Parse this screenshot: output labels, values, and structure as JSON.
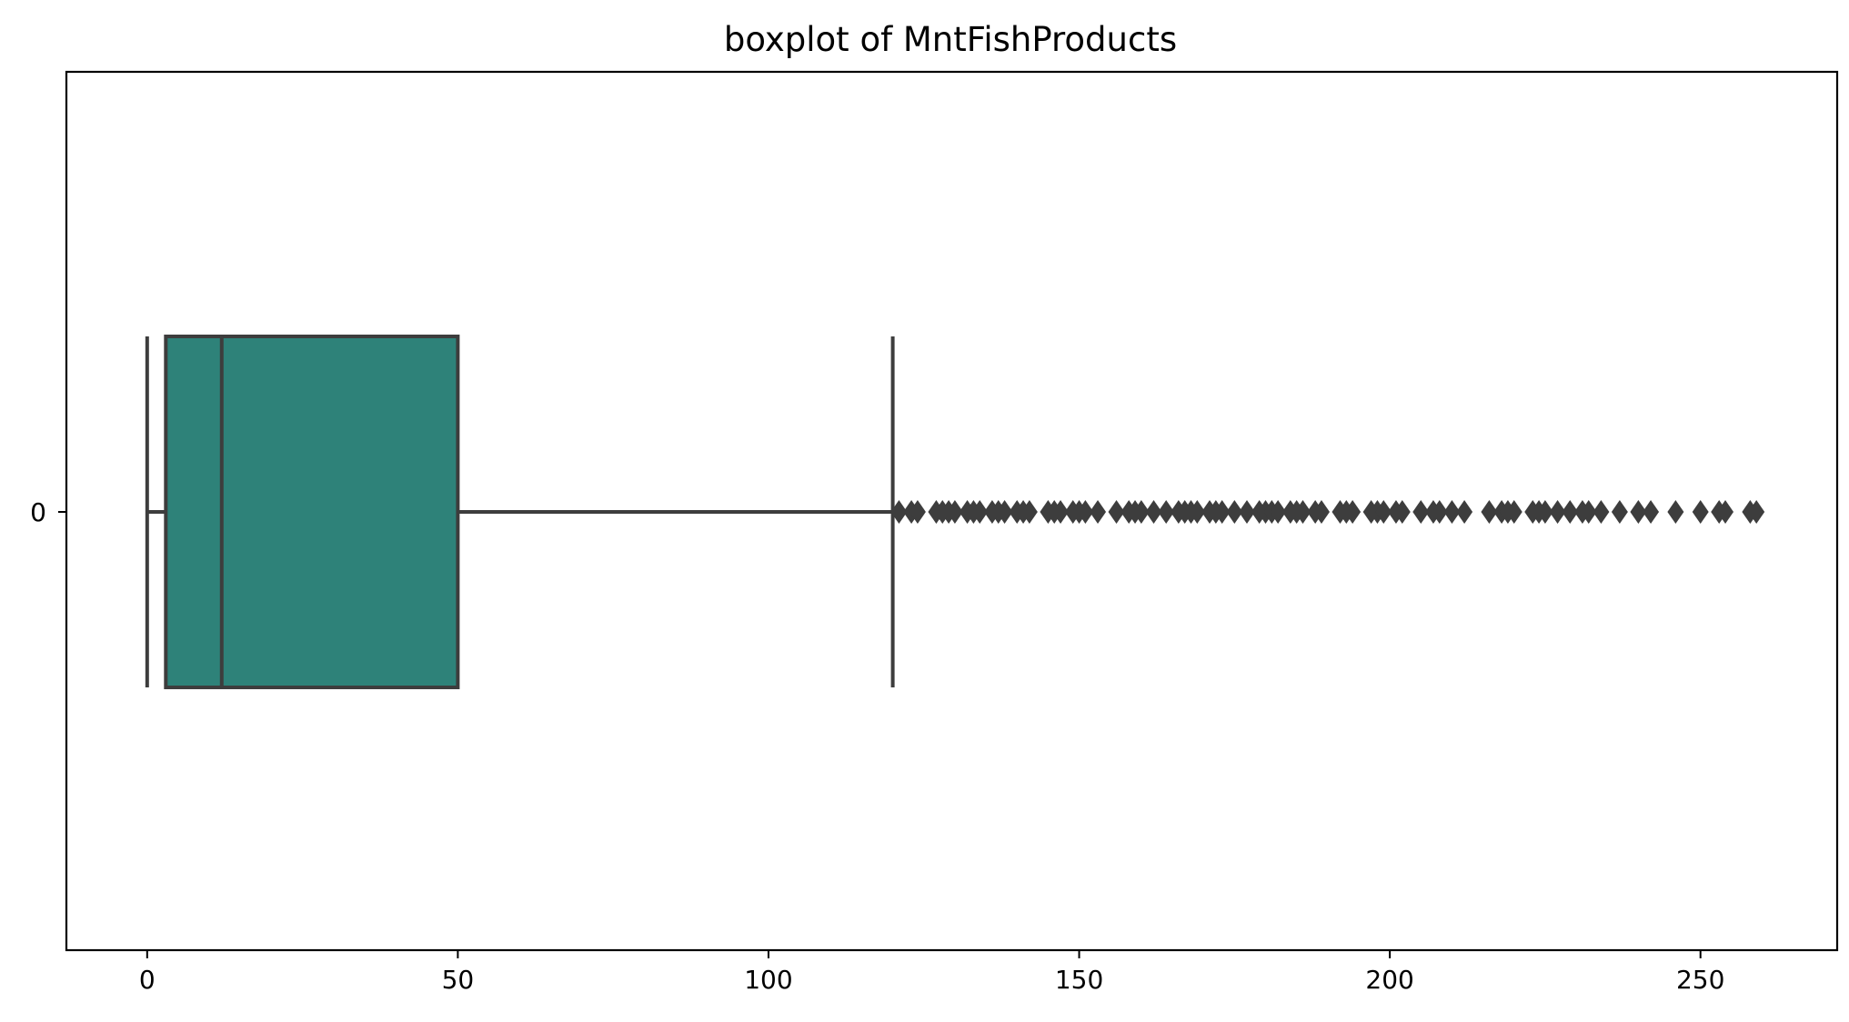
{
  "chart_data": {
    "type": "boxplot",
    "title": "boxplot of MntFishProducts",
    "orientation": "horizontal",
    "categories": [
      "0"
    ],
    "xlim": [
      -13,
      272
    ],
    "xticks": [
      0,
      50,
      100,
      150,
      200,
      250
    ],
    "xtick_labels": [
      "0",
      "50",
      "100",
      "150",
      "200",
      "250"
    ],
    "ytick_labels": [
      "0"
    ],
    "box": {
      "whisker_low": 0,
      "q1": 3,
      "median": 12,
      "q3": 50,
      "whisker_high": 120
    },
    "fliers": [
      121,
      123,
      124,
      127,
      128,
      129,
      130,
      132,
      133,
      134,
      136,
      137,
      138,
      140,
      141,
      142,
      145,
      146,
      147,
      149,
      150,
      151,
      153,
      156,
      158,
      159,
      160,
      162,
      164,
      166,
      167,
      168,
      169,
      171,
      172,
      173,
      175,
      177,
      179,
      180,
      181,
      182,
      184,
      185,
      186,
      188,
      189,
      192,
      193,
      194,
      197,
      198,
      199,
      201,
      202,
      205,
      207,
      208,
      210,
      212,
      216,
      218,
      219,
      220,
      223,
      224,
      225,
      227,
      229,
      231,
      232,
      234,
      237,
      240,
      242,
      246,
      250,
      253,
      254,
      258,
      259
    ],
    "box_color": "#2e8279",
    "line_color": "#3d3d3d",
    "grid": false
  }
}
